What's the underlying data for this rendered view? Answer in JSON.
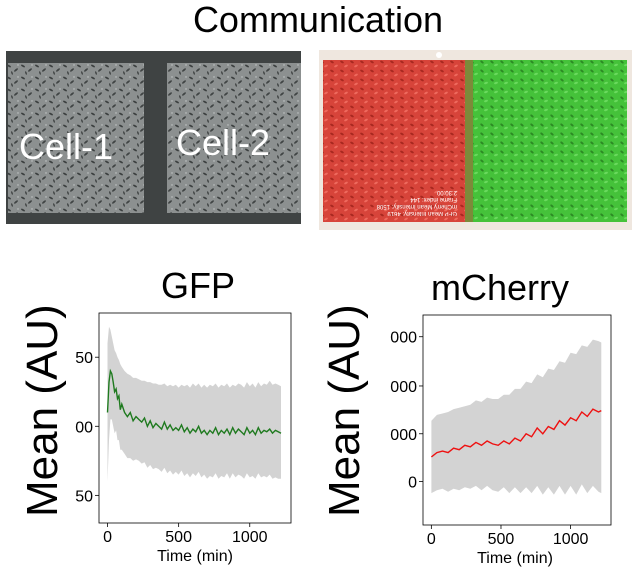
{
  "title": "Communication",
  "panel_left": {
    "labels": [
      "Cell-1",
      "Cell-2"
    ]
  },
  "panel_right": {
    "overlay_lines": [
      "GFP Mean Intensity: 4619",
      "mCherry Mean Intensity: 1508",
      "Frame index: 144",
      "2:30:00"
    ]
  },
  "colors": {
    "gfp_line": "#1f7a1f",
    "mcherry_line": "#ee1111",
    "band": "#d3d3d3",
    "left_bg": "#3a3d3d",
    "red_cells": "#d7443a",
    "green_cells": "#45c23a"
  },
  "chart_data": [
    {
      "type": "line",
      "title": "GFP",
      "xlabel": "Time (min)",
      "ylabel": "Mean (AU)",
      "xlim": [
        -60,
        1290
      ],
      "ylim": [
        430,
        582
      ],
      "xticks": [
        0,
        500,
        1000
      ],
      "yticks": [
        450,
        500,
        550
      ],
      "ytick_labels": [
        "50",
        "00",
        "50",
        "00"
      ],
      "ytick_values": [
        450,
        500,
        550,
        600
      ],
      "series": [
        {
          "x": [
            0,
            10,
            20,
            30,
            40,
            50,
            60,
            70,
            80,
            90,
            100,
            120,
            140,
            160,
            180,
            200,
            220,
            240,
            260,
            280,
            300,
            320,
            340,
            360,
            380,
            400,
            420,
            440,
            460,
            480,
            500,
            520,
            540,
            560,
            580,
            600,
            620,
            640,
            660,
            680,
            700,
            720,
            740,
            760,
            780,
            800,
            820,
            840,
            860,
            880,
            900,
            920,
            940,
            960,
            980,
            1000,
            1020,
            1040,
            1060,
            1080,
            1100,
            1120,
            1140,
            1160,
            1180,
            1200,
            1220
          ],
          "y": [
            510,
            532,
            540,
            538,
            532,
            525,
            527,
            520,
            522,
            512,
            516,
            510,
            507,
            510,
            504,
            507,
            505,
            503,
            506,
            500,
            504,
            499,
            502,
            500,
            498,
            503,
            498,
            501,
            497,
            499,
            497,
            501,
            496,
            499,
            495,
            498,
            496,
            500,
            495,
            497,
            494,
            497,
            495,
            499,
            494,
            497,
            495,
            498,
            494,
            499,
            495,
            498,
            496,
            494,
            499,
            495,
            497,
            494,
            499,
            495,
            497,
            496,
            498,
            495,
            497,
            496,
            495
          ],
          "upper": [
            560,
            572,
            570,
            565,
            560,
            555,
            553,
            550,
            548,
            545,
            543,
            540,
            538,
            537,
            535,
            535,
            534,
            533,
            533,
            532,
            532,
            531,
            531,
            530,
            530,
            531,
            529,
            530,
            529,
            530,
            528,
            530,
            529,
            530,
            528,
            531,
            529,
            531,
            528,
            530,
            528,
            530,
            529,
            531,
            528,
            530,
            529,
            531,
            528,
            530,
            529,
            531,
            530,
            528,
            532,
            529,
            531,
            528,
            532,
            529,
            531,
            530,
            533,
            530,
            531,
            530,
            529
          ],
          "lower": [
            460,
            490,
            505,
            505,
            500,
            495,
            497,
            490,
            490,
            483,
            483,
            480,
            477,
            477,
            475,
            476,
            475,
            473,
            474,
            470,
            472,
            469,
            470,
            469,
            467,
            470,
            466,
            468,
            465,
            467,
            465,
            468,
            464,
            466,
            463,
            466,
            464,
            467,
            463,
            465,
            462,
            464,
            463,
            466,
            462,
            464,
            463,
            466,
            462,
            466,
            463,
            465,
            464,
            462,
            466,
            463,
            464,
            462,
            466,
            463,
            464,
            463,
            465,
            462,
            463,
            462,
            462
          ]
        }
      ]
    },
    {
      "type": "line",
      "title": "mCherry",
      "xlabel": "Time (min)",
      "ylabel": "Mean (AU)",
      "xlim": [
        -60,
        1290
      ],
      "ylim": [
        -30,
        115
      ],
      "xticks": [
        0,
        500,
        1000
      ],
      "yticks": [
        0,
        33,
        66,
        100
      ],
      "ytick_labels": [
        "0",
        "000",
        "000",
        "000"
      ],
      "ytick_values": [
        0,
        33,
        66,
        100
      ],
      "series": [
        {
          "x": [
            0,
            40,
            80,
            120,
            160,
            200,
            240,
            280,
            320,
            360,
            400,
            440,
            480,
            520,
            560,
            600,
            640,
            680,
            720,
            760,
            800,
            840,
            880,
            920,
            960,
            1000,
            1040,
            1080,
            1120,
            1160,
            1200,
            1220
          ],
          "y": [
            17,
            20,
            21,
            20,
            23,
            22,
            25,
            24,
            27,
            25,
            28,
            26,
            25,
            28,
            26,
            30,
            28,
            33,
            31,
            37,
            33,
            38,
            36,
            42,
            39,
            44,
            42,
            48,
            45,
            50,
            48,
            49
          ],
          "upper": [
            42,
            46,
            47,
            48,
            50,
            51,
            52,
            53,
            56,
            55,
            58,
            57,
            57,
            60,
            60,
            64,
            64,
            69,
            68,
            74,
            72,
            78,
            77,
            83,
            82,
            89,
            88,
            94,
            93,
            98,
            97,
            96
          ],
          "lower": [
            -8,
            -6,
            -5,
            -7,
            -5,
            -6,
            -4,
            -5,
            -3,
            -6,
            -3,
            -6,
            -7,
            -4,
            -8,
            -4,
            -8,
            -4,
            -8,
            -3,
            -9,
            -4,
            -9,
            -3,
            -9,
            -3,
            -9,
            -2,
            -8,
            -3,
            -7,
            -8
          ]
        }
      ]
    }
  ]
}
